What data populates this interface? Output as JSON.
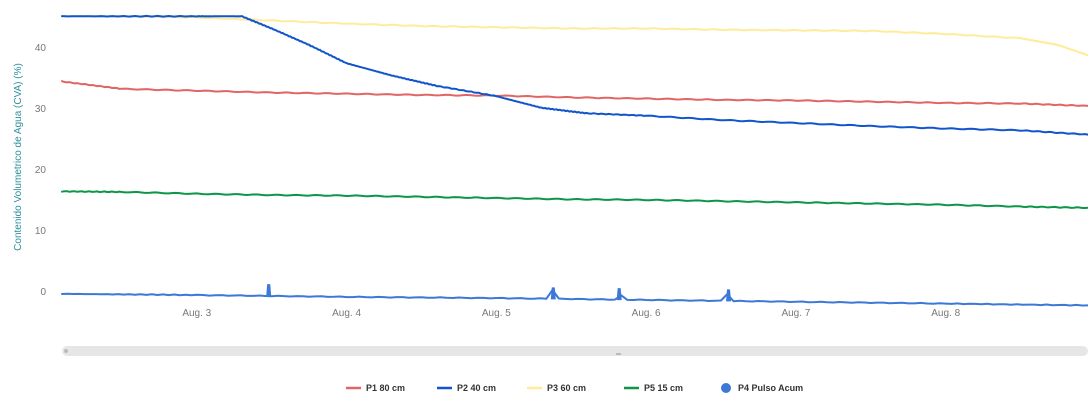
{
  "chart_data": {
    "type": "line",
    "title": "",
    "xlabel": "",
    "ylabel": "Contenido Volumetrico de Agua (CVA) (%)",
    "ylim": [
      0,
      45
    ],
    "yticks": [
      "0",
      "10",
      "20",
      "30",
      "40"
    ],
    "xlim": [
      2.1,
      8.95
    ],
    "xticks": [
      {
        "label": "Aug. 3",
        "x": 3
      },
      {
        "label": "Aug. 4",
        "x": 4
      },
      {
        "label": "Aug. 5",
        "x": 5
      },
      {
        "label": "Aug. 6",
        "x": 6
      },
      {
        "label": "Aug. 7",
        "x": 7
      },
      {
        "label": "Aug. 8",
        "x": 8
      }
    ],
    "grid": false,
    "legend_position": "bottom-center",
    "series": [
      {
        "name": "P1 80 cm",
        "color": "#e06666",
        "x": [
          2.1,
          2.5,
          3.0,
          3.5,
          4.0,
          4.5,
          5.0,
          5.5,
          6.0,
          6.5,
          7.0,
          7.5,
          8.0,
          8.5,
          8.95
        ],
        "y": [
          34.5,
          33.3,
          33.0,
          32.7,
          32.5,
          32.3,
          32.2,
          31.9,
          31.7,
          31.5,
          31.4,
          31.2,
          31.0,
          30.9,
          30.5
        ]
      },
      {
        "name": "P2 40 cm",
        "color": "#1155cc",
        "x": [
          2.1,
          3.0,
          3.3,
          3.5,
          3.75,
          4.0,
          4.3,
          4.6,
          5.0,
          5.3,
          5.6,
          6.0,
          6.5,
          7.0,
          7.5,
          8.0,
          8.5,
          8.95
        ],
        "y": [
          45.2,
          45.2,
          45.2,
          43.2,
          40.5,
          37.5,
          35.5,
          33.8,
          32.1,
          30.2,
          29.3,
          28.9,
          28.2,
          27.7,
          27.2,
          26.8,
          26.5,
          25.8
        ]
      },
      {
        "name": "P3 60 cm",
        "color": "#ffeb99",
        "x": [
          2.1,
          2.5,
          3.0,
          3.5,
          4.0,
          4.5,
          5.0,
          5.5,
          6.0,
          6.5,
          7.0,
          7.5,
          8.0,
          8.5,
          8.75,
          8.95
        ],
        "y": [
          45.2,
          45.2,
          45.0,
          44.5,
          44.0,
          43.6,
          43.4,
          43.2,
          43.2,
          43.0,
          42.9,
          42.8,
          42.3,
          41.6,
          40.5,
          38.8
        ]
      },
      {
        "name": "P5 15 cm",
        "color": "#0d9648",
        "x": [
          2.1,
          2.5,
          3.0,
          3.5,
          4.0,
          4.5,
          5.0,
          5.5,
          6.0,
          6.5,
          7.0,
          7.5,
          8.0,
          8.5,
          8.95
        ],
        "y": [
          16.5,
          16.4,
          16.1,
          15.9,
          15.8,
          15.6,
          15.4,
          15.2,
          15.1,
          14.9,
          14.7,
          14.5,
          14.3,
          14.0,
          13.8
        ]
      },
      {
        "name": "P4 Pulso Acum",
        "color": "#3c78d8",
        "marker": "circle",
        "x": [
          2.1,
          3.0,
          4.0,
          5.0,
          6.0,
          7.0,
          8.0,
          8.95
        ],
        "y": [
          -0.3,
          -0.5,
          -0.8,
          -1.0,
          -1.3,
          -1.6,
          -1.9,
          -2.2
        ],
        "pulses_x": [
          3.48,
          5.38,
          5.82,
          6.55
        ]
      }
    ]
  }
}
